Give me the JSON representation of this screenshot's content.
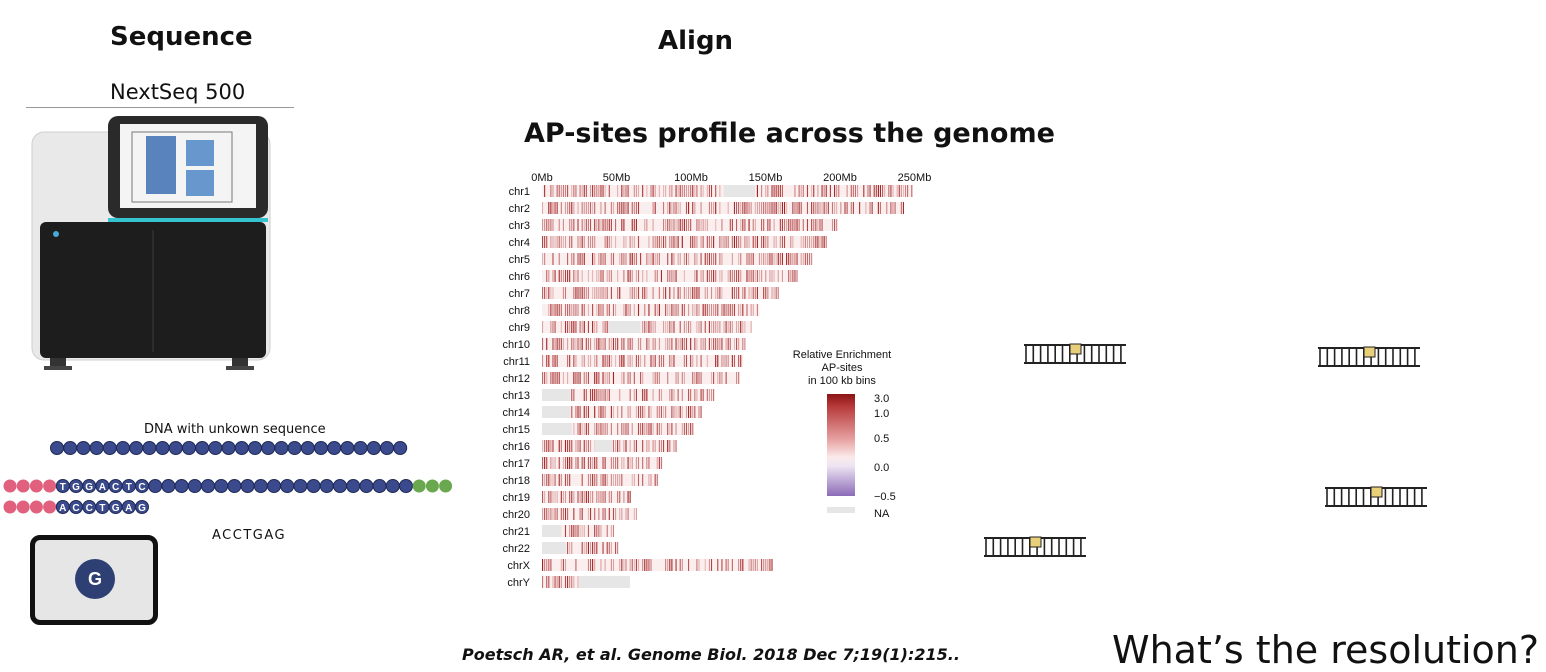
{
  "headings": {
    "sequence": "Sequence",
    "align": "Align",
    "ap_title": "AP-sites profile across the genome"
  },
  "device": {
    "name": "NextSeq 500"
  },
  "dna": {
    "label": "DNA with unkown sequence",
    "read_letters": [
      "T",
      "G",
      "G",
      "A",
      "C",
      "T",
      "C"
    ],
    "read2_letters": [
      "A",
      "C",
      "C",
      "T",
      "G",
      "A",
      "G"
    ],
    "read_text": "ACCTGAG",
    "current_base": "G"
  },
  "legend": {
    "title_lines": [
      "Relative Enrichment",
      "AP-sites",
      "in 100 kb bins"
    ],
    "ticks": [
      "3.0",
      "1.0",
      "0.5",
      "0.0",
      "−0.5",
      "NA"
    ]
  },
  "citation": "Poetsch AR, et al. Genome Biol. 2018 Dec 7;19(1):215..",
  "question": "What’s the resolution?",
  "colors": {
    "enrichment_high": "#9e1b1b",
    "enrichment_low": "#f6d9d9",
    "negative": "#8b6bb8",
    "na": "#e6e6e6",
    "base_dot": "#3b4a8c"
  },
  "chart_data": {
    "type": "heatmap",
    "xlabel": "",
    "ylabel": "",
    "x_unit": "Mb",
    "xlim": [
      0,
      250
    ],
    "x_ticks": [
      {
        "value": 0,
        "label": "0Mb"
      },
      {
        "value": 50,
        "label": "50Mb"
      },
      {
        "value": 100,
        "label": "100Mb"
      },
      {
        "value": 150,
        "label": "150Mb"
      },
      {
        "value": 200,
        "label": "200Mb"
      },
      {
        "value": 250,
        "label": "250Mb"
      }
    ],
    "chromosomes": [
      {
        "name": "chr1",
        "length": 249,
        "na_regions": [
          [
            122,
            143
          ]
        ]
      },
      {
        "name": "chr2",
        "length": 243,
        "na_regions": []
      },
      {
        "name": "chr3",
        "length": 198,
        "na_regions": []
      },
      {
        "name": "chr4",
        "length": 191,
        "na_regions": []
      },
      {
        "name": "chr5",
        "length": 181,
        "na_regions": []
      },
      {
        "name": "chr6",
        "length": 171,
        "na_regions": []
      },
      {
        "name": "chr7",
        "length": 159,
        "na_regions": []
      },
      {
        "name": "chr8",
        "length": 146,
        "na_regions": []
      },
      {
        "name": "chr9",
        "length": 141,
        "na_regions": [
          [
            45,
            66
          ]
        ]
      },
      {
        "name": "chr10",
        "length": 136,
        "na_regions": []
      },
      {
        "name": "chr11",
        "length": 135,
        "na_regions": []
      },
      {
        "name": "chr12",
        "length": 133,
        "na_regions": []
      },
      {
        "name": "chr13",
        "length": 115,
        "na_regions": [
          [
            0,
            19
          ]
        ]
      },
      {
        "name": "chr14",
        "length": 107,
        "na_regions": [
          [
            0,
            19
          ]
        ]
      },
      {
        "name": "chr15",
        "length": 102,
        "na_regions": [
          [
            0,
            20
          ]
        ]
      },
      {
        "name": "chr16",
        "length": 90,
        "na_regions": [
          [
            35,
            47
          ]
        ]
      },
      {
        "name": "chr17",
        "length": 81,
        "na_regions": []
      },
      {
        "name": "chr18",
        "length": 78,
        "na_regions": []
      },
      {
        "name": "chr19",
        "length": 59,
        "na_regions": []
      },
      {
        "name": "chr20",
        "length": 63,
        "na_regions": []
      },
      {
        "name": "chr21",
        "length": 48,
        "na_regions": [
          [
            0,
            13
          ]
        ]
      },
      {
        "name": "chr22",
        "length": 51,
        "na_regions": [
          [
            0,
            16
          ]
        ]
      },
      {
        "name": "chrX",
        "length": 155,
        "na_regions": []
      },
      {
        "name": "chrY",
        "length": 59,
        "na_regions": [
          [
            25,
            59
          ]
        ]
      }
    ],
    "color_scale": {
      "min": -0.5,
      "max": 3.0
    }
  }
}
